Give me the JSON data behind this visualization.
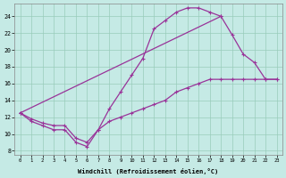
{
  "xlabel": "Windchill (Refroidissement éolien,°C)",
  "bg_color": "#c5eae5",
  "line_color": "#993399",
  "grid_color": "#99ccbb",
  "xlim": [
    -0.5,
    23.5
  ],
  "ylim": [
    7.5,
    25.5
  ],
  "xticks": [
    0,
    1,
    2,
    3,
    4,
    5,
    6,
    7,
    8,
    9,
    10,
    11,
    12,
    13,
    14,
    15,
    16,
    17,
    18,
    19,
    20,
    21,
    22,
    23
  ],
  "yticks": [
    8,
    10,
    12,
    14,
    16,
    18,
    20,
    22,
    24
  ],
  "curve1_x": [
    0,
    1,
    2,
    3,
    4,
    5,
    6,
    7,
    8,
    9,
    10,
    11,
    12,
    13,
    14,
    15,
    16,
    17,
    18
  ],
  "curve1_y": [
    12.5,
    11.5,
    11.0,
    10.5,
    10.5,
    9.0,
    8.5,
    10.5,
    13.0,
    15.0,
    17.0,
    19.0,
    22.5,
    23.5,
    24.5,
    25.0,
    25.0,
    24.5,
    24.0
  ],
  "curve2_x": [
    0,
    1,
    2,
    3,
    4,
    5,
    6,
    7,
    8,
    9,
    10,
    11,
    12,
    13,
    14,
    15,
    16,
    17,
    18,
    19,
    20,
    21,
    22,
    23
  ],
  "curve2_y": [
    12.5,
    11.8,
    11.3,
    11.0,
    11.0,
    9.5,
    9.0,
    10.5,
    11.5,
    12.0,
    12.5,
    13.0,
    13.5,
    14.0,
    15.0,
    15.5,
    16.0,
    16.5,
    16.5,
    16.5,
    16.5,
    16.5,
    16.5,
    16.5
  ],
  "curve3_x": [
    0,
    18,
    19,
    20,
    21,
    22,
    23
  ],
  "curve3_y": [
    12.5,
    24.0,
    21.8,
    19.5,
    18.5,
    16.5,
    16.5
  ]
}
